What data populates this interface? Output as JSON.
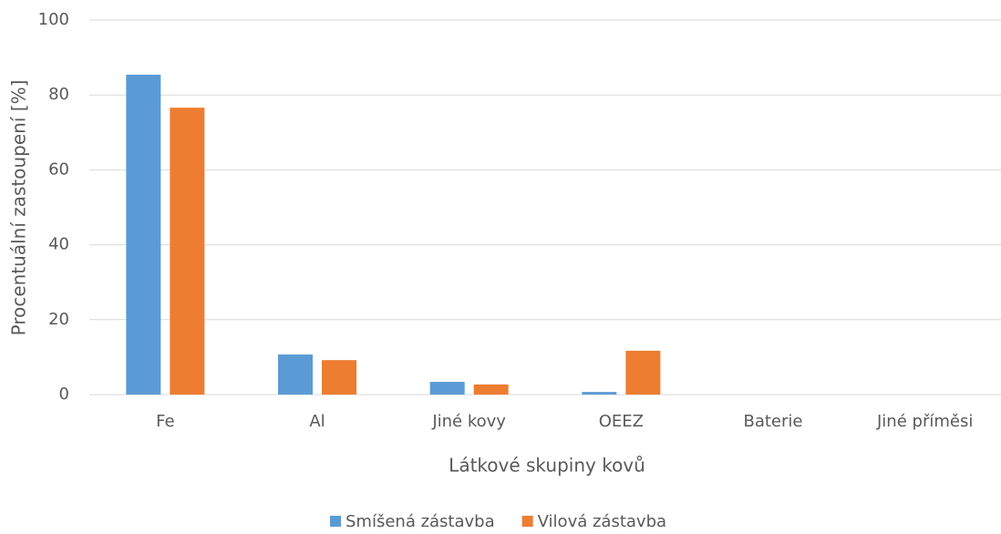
{
  "chart_data": {
    "type": "bar",
    "xlabel": "Látkové skupiny kovů",
    "ylabel": "Procentuální zastoupení [%]",
    "categories": [
      "Fe",
      "Al",
      "Jiné kovy",
      "OEEZ",
      "Baterie",
      "Jiné příměsi"
    ],
    "series": [
      {
        "name": "Smíšená zástavba",
        "color": "#5b9bd5",
        "values": [
          85.4,
          10.7,
          3.4,
          0.7,
          0,
          0
        ]
      },
      {
        "name": "Vilová zástavba",
        "color": "#ed7d31",
        "values": [
          76.6,
          9.2,
          2.7,
          11.7,
          0,
          0
        ]
      }
    ],
    "ylim": [
      0,
      100
    ],
    "yticks": [
      0,
      20,
      40,
      60,
      80,
      100
    ],
    "grid": true,
    "legend": "bottom"
  }
}
